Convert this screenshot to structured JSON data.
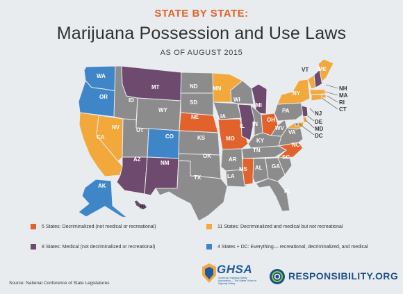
{
  "header": {
    "kicker": "STATE BY STATE:",
    "title": "Marijuana Possession and Use Laws",
    "subtitle": "AS OF AUGUST 2015"
  },
  "colors": {
    "decriminalized": "#e2622b",
    "medical": "#6e4a6e",
    "both": "#f2a83a",
    "full": "#3f86c8",
    "none": "#8c8c8c"
  },
  "states": [
    {
      "id": "WA",
      "cat": "full"
    },
    {
      "id": "OR",
      "cat": "full"
    },
    {
      "id": "CA",
      "cat": "both"
    },
    {
      "id": "NV",
      "cat": "both"
    },
    {
      "id": "ID",
      "cat": "none"
    },
    {
      "id": "MT",
      "cat": "medical"
    },
    {
      "id": "WY",
      "cat": "none"
    },
    {
      "id": "UT",
      "cat": "none"
    },
    {
      "id": "AZ",
      "cat": "medical"
    },
    {
      "id": "CO",
      "cat": "full"
    },
    {
      "id": "NM",
      "cat": "medical"
    },
    {
      "id": "ND",
      "cat": "none"
    },
    {
      "id": "SD",
      "cat": "none"
    },
    {
      "id": "NE",
      "cat": "decriminalized"
    },
    {
      "id": "KS",
      "cat": "none"
    },
    {
      "id": "OK",
      "cat": "none"
    },
    {
      "id": "TX",
      "cat": "none"
    },
    {
      "id": "MN",
      "cat": "both"
    },
    {
      "id": "IA",
      "cat": "none"
    },
    {
      "id": "MO",
      "cat": "decriminalized"
    },
    {
      "id": "AR",
      "cat": "none"
    },
    {
      "id": "LA",
      "cat": "none"
    },
    {
      "id": "WI",
      "cat": "none"
    },
    {
      "id": "IL",
      "cat": "medical"
    },
    {
      "id": "MI",
      "cat": "medical"
    },
    {
      "id": "IN",
      "cat": "none"
    },
    {
      "id": "OH",
      "cat": "decriminalized"
    },
    {
      "id": "KY",
      "cat": "none"
    },
    {
      "id": "TN",
      "cat": "none"
    },
    {
      "id": "MS",
      "cat": "decriminalized"
    },
    {
      "id": "AL",
      "cat": "none"
    },
    {
      "id": "GA",
      "cat": "none"
    },
    {
      "id": "FL",
      "cat": "none"
    },
    {
      "id": "SC",
      "cat": "none"
    },
    {
      "id": "NC",
      "cat": "decriminalized"
    },
    {
      "id": "VA",
      "cat": "none"
    },
    {
      "id": "WV",
      "cat": "none"
    },
    {
      "id": "PA",
      "cat": "none"
    },
    {
      "id": "NY",
      "cat": "both"
    },
    {
      "id": "VT",
      "cat": "both"
    },
    {
      "id": "NH",
      "cat": "medical"
    },
    {
      "id": "ME",
      "cat": "both"
    },
    {
      "id": "MA",
      "cat": "both"
    },
    {
      "id": "RI",
      "cat": "both"
    },
    {
      "id": "CT",
      "cat": "both"
    },
    {
      "id": "NJ",
      "cat": "medical"
    },
    {
      "id": "DE",
      "cat": "both"
    },
    {
      "id": "MD",
      "cat": "both"
    },
    {
      "id": "DC",
      "cat": "full"
    },
    {
      "id": "AK",
      "cat": "full"
    },
    {
      "id": "HI",
      "cat": "medical"
    }
  ],
  "legend": [
    {
      "cat": "decriminalized",
      "label": "5 States: Decriminalized (not medical or recreational)"
    },
    {
      "cat": "medical",
      "label": "8 States: Medical (not decriminalized or recreational)"
    },
    {
      "cat": "both",
      "label": "11 States: Decriminalized and medical but not recreational"
    },
    {
      "cat": "full",
      "label": "4 States + DC: Everything— recreational, decriminalized, and medical"
    }
  ],
  "footer": {
    "source": "Source: National Conference of State Legislatures",
    "ghsa": "GHSA",
    "ghsa_tagline": "Governors Highway Safety Association — The States' Voice on Highway Safety",
    "responsibility": "RESPONSIBILITY.ORG"
  }
}
